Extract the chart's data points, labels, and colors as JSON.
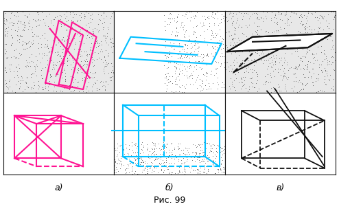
{
  "pink": "#FF1493",
  "cyan": "#00BFFF",
  "black": "#111111",
  "white": "#FFFFFF",
  "dot_color": "#555555",
  "fig_caption": "Рис. 99",
  "labels": [
    "а)",
    "б)",
    "в)"
  ]
}
